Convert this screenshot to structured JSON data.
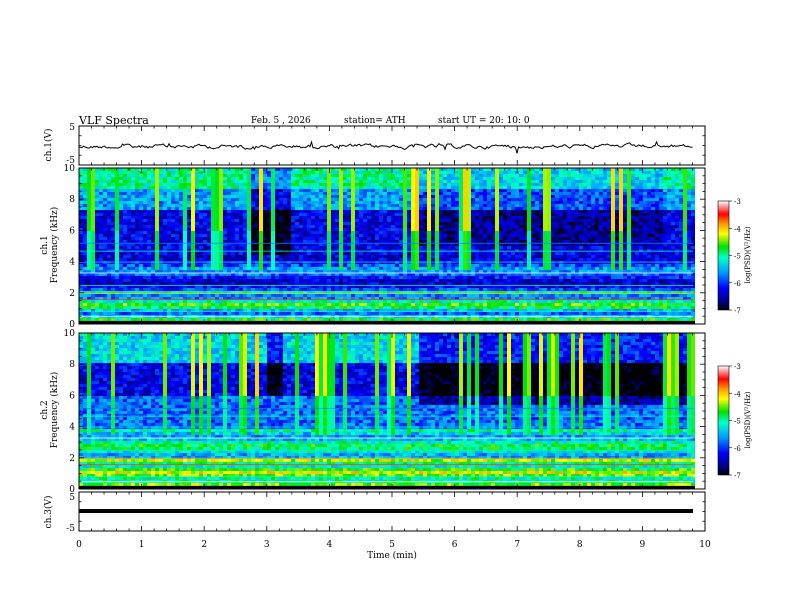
{
  "header": {
    "title": "VLF  Spectra",
    "date": "Feb. 5  , 2026",
    "station": "station= ATH",
    "start": "start  UT  =   20: 10: 0"
  },
  "chart_data": [
    {
      "type": "line",
      "ylabel": "ch.1(V)",
      "ylim": [
        -5,
        5
      ],
      "yticks": [
        {
          "v": 5,
          "label": "5"
        },
        {
          "v": -5,
          "label": "-5"
        }
      ],
      "xlim": [
        0,
        10
      ]
    },
    {
      "type": "heatmap",
      "ylabel_top": "ch.1",
      "ylabel": "Frequency (kHz)",
      "ylim": [
        0,
        10
      ],
      "yticks": [
        "0",
        "2",
        "4",
        "6",
        "8",
        "10"
      ],
      "xlim": [
        0,
        10
      ],
      "colorbar": {
        "label": "log(PSD)(V²/Hz)",
        "range": [
          -7,
          -3
        ],
        "ticks": [
          "-3",
          "-4",
          "-5",
          "-6",
          "-7"
        ]
      }
    },
    {
      "type": "heatmap",
      "ylabel_top": "ch.2",
      "ylabel": "Frequency (kHz)",
      "ylim": [
        0,
        10
      ],
      "yticks": [
        "0",
        "2",
        "4",
        "6",
        "8",
        "10"
      ],
      "xlim": [
        0,
        10
      ],
      "colorbar": {
        "label": "log(PSD)(V²/Hz)",
        "range": [
          -7,
          -3
        ],
        "ticks": [
          "-3",
          "-4",
          "-5",
          "-6",
          "-7"
        ]
      }
    },
    {
      "type": "line",
      "ylabel": "ch.3(V)",
      "ylim": [
        -5,
        5
      ],
      "yticks": [
        {
          "v": 5,
          "label": "5"
        },
        {
          "v": -5,
          "label": "-5"
        }
      ],
      "xlim": [
        0,
        10
      ],
      "xlabel": "Time  (min)",
      "xticks": [
        "0",
        "1",
        "2",
        "3",
        "4",
        "5",
        "6",
        "7",
        "8",
        "9",
        "10"
      ]
    }
  ]
}
